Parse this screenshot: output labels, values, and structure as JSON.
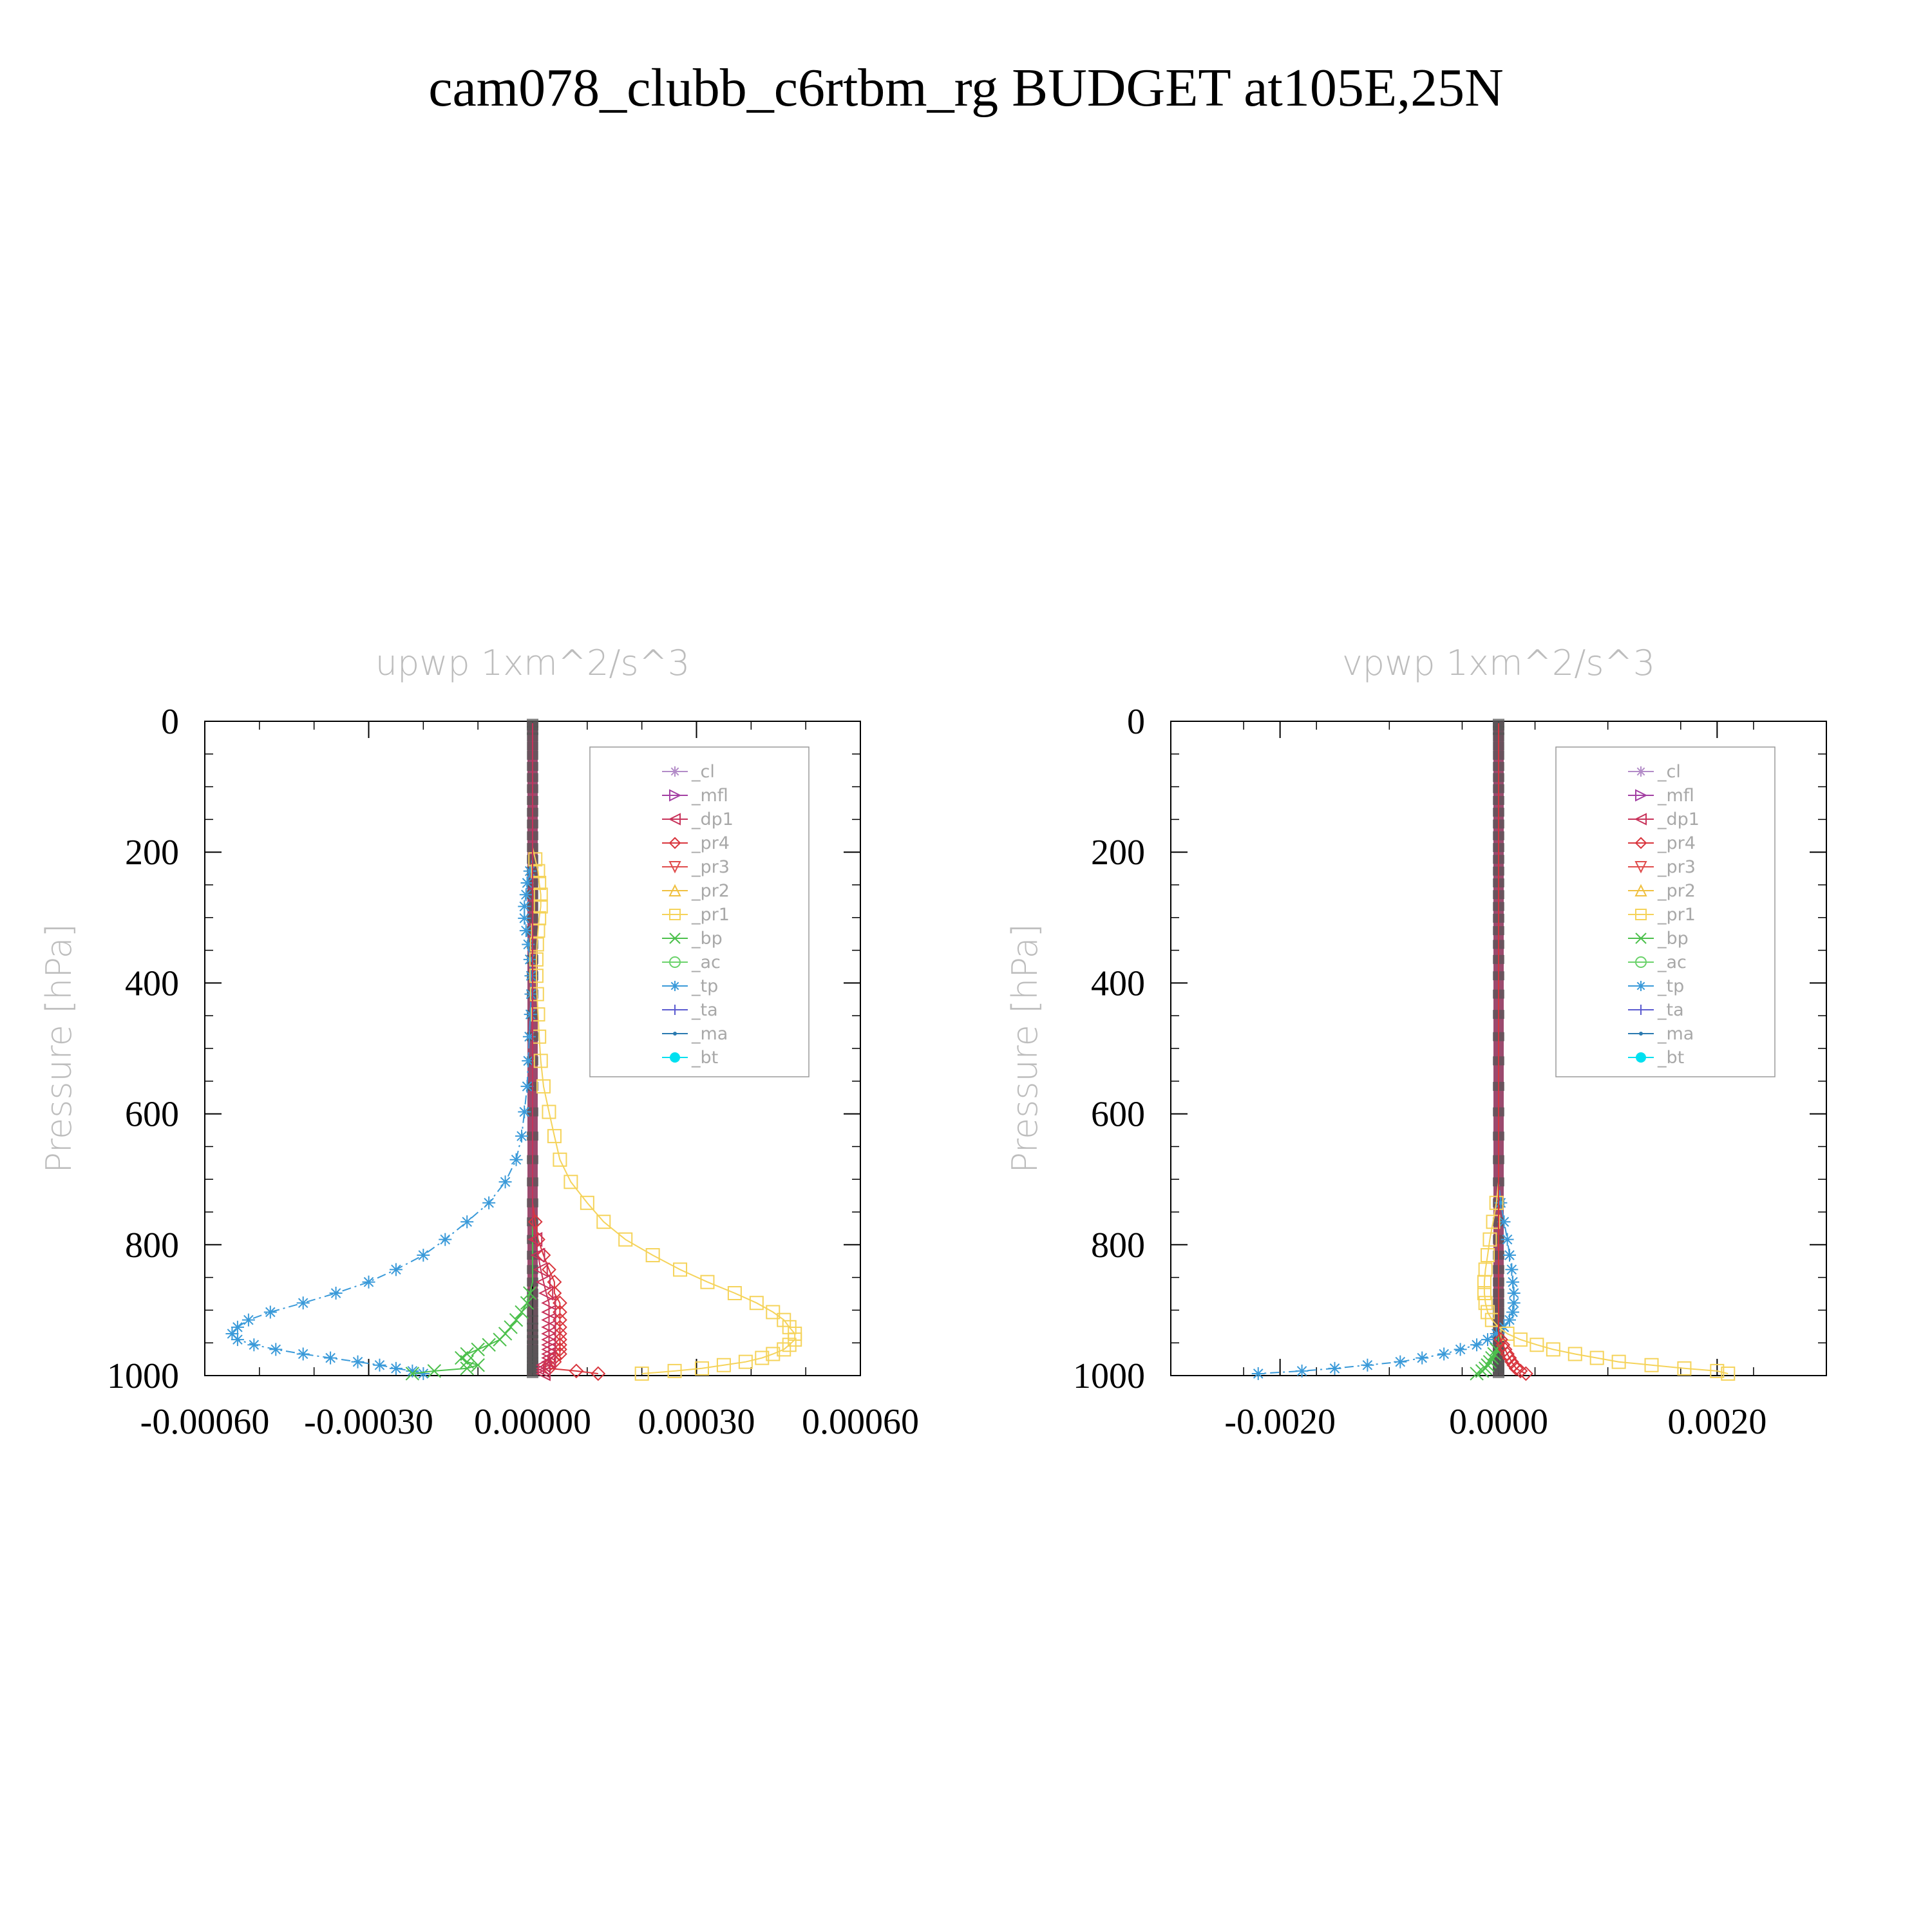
{
  "title": "cam078_clubb_c6rtbm_rg  BUDGET at105E,25N",
  "legend": [
    {
      "key": "_cl",
      "color": "#b38cc8",
      "marker": "star"
    },
    {
      "key": "_mfl",
      "color": "#a33fa3",
      "marker": "tri-right"
    },
    {
      "key": "_dp1",
      "color": "#c8325a",
      "marker": "tri-left"
    },
    {
      "key": "_pr4",
      "color": "#d9363e",
      "marker": "diamond"
    },
    {
      "key": "_pr3",
      "color": "#e04c4c",
      "marker": "tri-down"
    },
    {
      "key": "_pr2",
      "color": "#f0c040",
      "marker": "tri-up"
    },
    {
      "key": "_pr1",
      "color": "#f5d35a",
      "marker": "square"
    },
    {
      "key": "_bp",
      "color": "#4cc04c",
      "marker": "x"
    },
    {
      "key": "_ac",
      "color": "#6ad26a",
      "marker": "circle"
    },
    {
      "key": "_tp",
      "color": "#3a9ad9",
      "marker": "asterisk"
    },
    {
      "key": "_ta",
      "color": "#5a5ad0",
      "marker": "plus"
    },
    {
      "key": "_ma",
      "color": "#2a7ab0",
      "marker": "dot"
    },
    {
      "key": "_bt",
      "color": "#00e0f0",
      "marker": "filled-circle"
    }
  ],
  "chart_data": [
    {
      "type": "line",
      "title": "upwp   1xm^2/s^3",
      "ylabel": "Pressure [hPa]",
      "xlim": [
        -0.0006,
        0.0006
      ],
      "ylim": [
        1000,
        0
      ],
      "x_ticks": [
        -0.0006,
        -0.0003,
        0.0,
        0.0003,
        0.0006
      ],
      "x_tick_labels": [
        "-0.00060",
        "-0.00030",
        "0.00000",
        "0.00030",
        "0.00060"
      ],
      "y_ticks": [
        0,
        200,
        400,
        600,
        800,
        1000
      ],
      "y_tick_labels": [
        "0",
        "200",
        "400",
        "600",
        "800",
        "1000"
      ],
      "pressure_levels": [
        3,
        7,
        14,
        24,
        38,
        52,
        69,
        86,
        103,
        121,
        139,
        157,
        175,
        193,
        211,
        229,
        247,
        265,
        283,
        301,
        320,
        341,
        364,
        389,
        417,
        448,
        482,
        519,
        558,
        597,
        634,
        670,
        704,
        736,
        765,
        792,
        816,
        838,
        857,
        874,
        889,
        903,
        915,
        926,
        936,
        945,
        953,
        960,
        967,
        973,
        979,
        984,
        989,
        993,
        997
      ],
      "series": [
        {
          "key": "_tp",
          "values": [
            0,
            0,
            0,
            0,
            0,
            0,
            0,
            0,
            0,
            0,
            0,
            0,
            0,
            0,
            0,
            -5e-06,
            -1e-05,
            -1.2e-05,
            -1.5e-05,
            -1.5e-05,
            -1.2e-05,
            -8e-06,
            -5e-06,
            -3e-06,
            -3e-06,
            -4e-06,
            -6e-06,
            -8e-06,
            -1e-05,
            -1.5e-05,
            -2e-05,
            -3e-05,
            -5e-05,
            -8e-05,
            -0.00012,
            -0.00016,
            -0.0002,
            -0.00025,
            -0.0003,
            -0.00036,
            -0.00042,
            -0.00048,
            -0.00052,
            -0.00054,
            -0.00055,
            -0.00054,
            -0.00051,
            -0.00047,
            -0.00042,
            -0.00037,
            -0.00032,
            -0.00028,
            -0.00025,
            -0.00022,
            -0.0002
          ]
        },
        {
          "key": "_pr1",
          "values": [
            0,
            0,
            0,
            0,
            0,
            0,
            0,
            0,
            0,
            0,
            0,
            0,
            0,
            0,
            5e-06,
            1e-05,
            1.2e-05,
            1.5e-05,
            1.5e-05,
            1.2e-05,
            1e-05,
            8e-06,
            7e-06,
            7e-06,
            8e-06,
            1e-05,
            1.2e-05,
            1.5e-05,
            2e-05,
            3e-05,
            4e-05,
            5e-05,
            7e-05,
            0.0001,
            0.00013,
            0.00017,
            0.00022,
            0.00027,
            0.00032,
            0.00037,
            0.00041,
            0.00044,
            0.00046,
            0.00047,
            0.00048,
            0.00048,
            0.00047,
            0.00046,
            0.00044,
            0.00042,
            0.00039,
            0.00035,
            0.00031,
            0.00026,
            0.0002
          ]
        },
        {
          "key": "_bp",
          "values": [
            0,
            0,
            0,
            0,
            0,
            0,
            0,
            0,
            0,
            0,
            0,
            0,
            0,
            0,
            0,
            0,
            0,
            0,
            0,
            0,
            0,
            0,
            0,
            0,
            0,
            0,
            0,
            0,
            0,
            0,
            0,
            0,
            0,
            0,
            0,
            0,
            0,
            0,
            0,
            -5e-06,
            -1e-05,
            -2e-05,
            -3e-05,
            -4e-05,
            -5e-05,
            -6e-05,
            -8e-05,
            -0.0001,
            -0.00012,
            -0.00013,
            -0.00012,
            -0.0001,
            -0.00012,
            -0.00018,
            -0.00022
          ]
        },
        {
          "key": "_pr4",
          "values": [
            0,
            0,
            0,
            0,
            0,
            0,
            0,
            0,
            0,
            0,
            0,
            0,
            0,
            0,
            0,
            0,
            0,
            0,
            0,
            0,
            0,
            0,
            0,
            0,
            0,
            0,
            0,
            0,
            0,
            0,
            0,
            0,
            0,
            0,
            5e-06,
            1e-05,
            2e-05,
            3e-05,
            4e-05,
            4e-05,
            5e-05,
            5e-05,
            5e-05,
            5e-05,
            5e-05,
            5e-05,
            5e-05,
            5e-05,
            5e-05,
            4e-05,
            4e-05,
            3e-05,
            3e-05,
            8e-05,
            0.00012
          ]
        },
        {
          "key": "_dp1",
          "values": [
            0,
            0,
            0,
            0,
            0,
            0,
            0,
            0,
            0,
            0,
            0,
            0,
            0,
            0,
            0,
            0,
            0,
            0,
            0,
            0,
            0,
            0,
            0,
            0,
            0,
            0,
            0,
            0,
            0,
            0,
            0,
            0,
            0,
            0,
            0,
            5e-06,
            1e-05,
            1.5e-05,
            2e-05,
            2.5e-05,
            3e-05,
            3e-05,
            3e-05,
            3e-05,
            3e-05,
            3e-05,
            3e-05,
            3e-05,
            3e-05,
            3e-05,
            3e-05,
            2e-05,
            2e-05,
            2e-05,
            2e-05
          ]
        }
      ]
    },
    {
      "type": "line",
      "title": "vpwp   1xm^2/s^3",
      "ylabel": "Pressure [hPa]",
      "xlim": [
        -0.003,
        0.003
      ],
      "ylim": [
        1000,
        0
      ],
      "x_ticks": [
        -0.002,
        0.0,
        0.002
      ],
      "x_tick_labels": [
        "-0.0020",
        "0.0000",
        "0.0020"
      ],
      "y_ticks": [
        0,
        200,
        400,
        600,
        800,
        1000
      ],
      "y_tick_labels": [
        "0",
        "200",
        "400",
        "600",
        "800",
        "1000"
      ],
      "pressure_levels": [
        3,
        7,
        14,
        24,
        38,
        52,
        69,
        86,
        103,
        121,
        139,
        157,
        175,
        193,
        211,
        229,
        247,
        265,
        283,
        301,
        320,
        341,
        364,
        389,
        417,
        448,
        482,
        519,
        558,
        597,
        634,
        670,
        704,
        736,
        765,
        792,
        816,
        838,
        857,
        874,
        889,
        903,
        915,
        926,
        936,
        945,
        953,
        960,
        967,
        973,
        979,
        984,
        989,
        993,
        997
      ],
      "series": [
        {
          "key": "_tp",
          "values": [
            0,
            0,
            0,
            0,
            0,
            0,
            0,
            0,
            0,
            0,
            0,
            0,
            0,
            0,
            0,
            0,
            0,
            0,
            0,
            0,
            0,
            0,
            0,
            0,
            0,
            0,
            0,
            0,
            0,
            0,
            0,
            0,
            0,
            2e-05,
            5e-05,
            8e-05,
            0.0001,
            0.00012,
            0.00013,
            0.00014,
            0.00014,
            0.00013,
            0.0001,
            5e-05,
            -2e-05,
            -0.0001,
            -0.0002,
            -0.00035,
            -0.0005,
            -0.0007,
            -0.0009,
            -0.0012,
            -0.0015,
            -0.0018,
            -0.0022
          ]
        },
        {
          "key": "_pr1",
          "values": [
            0,
            0,
            0,
            0,
            0,
            0,
            0,
            0,
            0,
            0,
            0,
            0,
            0,
            0,
            0,
            0,
            0,
            0,
            0,
            0,
            0,
            0,
            0,
            0,
            0,
            0,
            0,
            0,
            0,
            0,
            0,
            0,
            0,
            -2e-05,
            -5e-05,
            -8e-05,
            -0.0001,
            -0.00012,
            -0.00013,
            -0.00013,
            -0.00012,
            -0.0001,
            -6e-05,
            0,
            8e-05,
            0.0002,
            0.00035,
            0.0005,
            0.0007,
            0.0009,
            0.0011,
            0.0014,
            0.0017,
            0.002,
            0.0021
          ]
        },
        {
          "key": "_bp",
          "values": [
            0,
            0,
            0,
            0,
            0,
            0,
            0,
            0,
            0,
            0,
            0,
            0,
            0,
            0,
            0,
            0,
            0,
            0,
            0,
            0,
            0,
            0,
            0,
            0,
            0,
            0,
            0,
            0,
            0,
            0,
            0,
            0,
            0,
            0,
            0,
            0,
            0,
            0,
            0,
            0,
            0,
            0,
            0,
            0,
            0,
            0,
            0,
            -2e-05,
            -4e-05,
            -6e-05,
            -8e-05,
            -0.0001,
            -0.00012,
            -0.00015,
            -0.0002
          ]
        },
        {
          "key": "_pr4",
          "values": [
            0,
            0,
            0,
            0,
            0,
            0,
            0,
            0,
            0,
            0,
            0,
            0,
            0,
            0,
            0,
            0,
            0,
            0,
            0,
            0,
            0,
            0,
            0,
            0,
            0,
            0,
            0,
            0,
            0,
            0,
            0,
            0,
            0,
            0,
            0,
            0,
            0,
            0,
            0,
            0,
            0,
            0,
            0,
            0,
            0,
            2e-05,
            4e-05,
            6e-05,
            8e-05,
            0.0001,
            0.00012,
            0.00014,
            0.00016,
            0.0002,
            0.00025
          ]
        }
      ]
    }
  ]
}
